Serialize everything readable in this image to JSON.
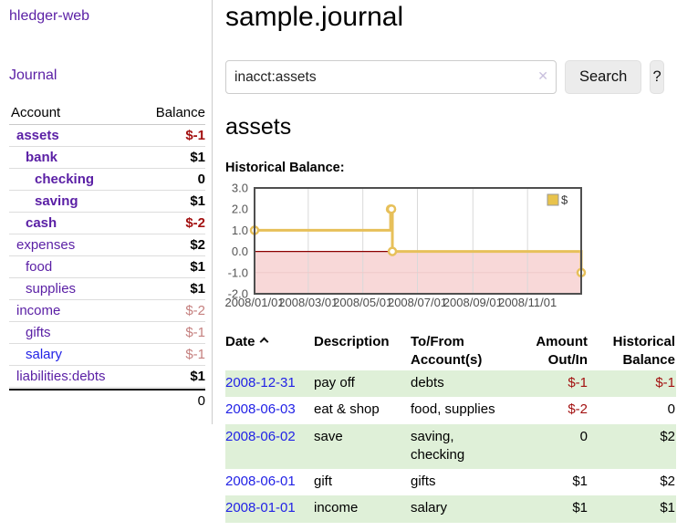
{
  "colors": {
    "purple": "#5a1fa5",
    "blue": "#2222e6",
    "negative": "#a31111",
    "negative_light": "#c5807f",
    "row_stripe_green": "#dff0d8",
    "gold": "#e7c05a"
  },
  "sidebar": {
    "brand": "hledger-web",
    "journal_link": "Journal",
    "accounts_header": {
      "account": "Account",
      "balance": "Balance"
    },
    "accounts": [
      {
        "name": "assets",
        "indent": 1,
        "bold": true,
        "color": "purple",
        "balance": "$-1"
      },
      {
        "name": "bank",
        "indent": 2,
        "bold": true,
        "color": "purple",
        "balance": "$1"
      },
      {
        "name": "checking",
        "indent": 3,
        "bold": true,
        "color": "purple",
        "balance": "0"
      },
      {
        "name": "saving",
        "indent": 3,
        "bold": true,
        "color": "purple",
        "balance": "$1"
      },
      {
        "name": "cash",
        "indent": 2,
        "bold": true,
        "color": "purple",
        "balance": "$-2"
      },
      {
        "name": "expenses",
        "indent": 1,
        "bold": false,
        "color": "purple",
        "balance": "$2"
      },
      {
        "name": "food",
        "indent": 2,
        "bold": false,
        "color": "purple",
        "balance": "$1"
      },
      {
        "name": "supplies",
        "indent": 2,
        "bold": false,
        "color": "purple",
        "balance": "$1"
      },
      {
        "name": "income",
        "indent": 1,
        "bold": false,
        "color": "purple",
        "balance": "$-2"
      },
      {
        "name": "gifts",
        "indent": 2,
        "bold": false,
        "color": "purple",
        "balance": "$-1"
      },
      {
        "name": "salary",
        "indent": 2,
        "bold": false,
        "color": "blue",
        "balance": "$-1"
      },
      {
        "name": "liabilities:debts",
        "indent": 1,
        "bold": false,
        "color": "purple",
        "balance": "$1"
      }
    ],
    "total": "0"
  },
  "main": {
    "title": "sample.journal",
    "search": {
      "query": "inacct:assets",
      "button": "Search",
      "help": "?",
      "clear_icon": "✕"
    },
    "account_heading": "assets",
    "chart_title": "Historical Balance:",
    "register": {
      "headers": {
        "date": "Date",
        "description": "Description",
        "to_from": "To/From Account(s)",
        "amount": "Amount Out/In",
        "balance": "Historical Balance"
      },
      "rows": [
        {
          "date": "2008-12-31",
          "description": "pay off",
          "to_from": "debts",
          "amount": "$-1",
          "balance": "$-1"
        },
        {
          "date": "2008-06-03",
          "description": "eat & shop",
          "to_from": "food, supplies",
          "amount": "$-2",
          "balance": "0"
        },
        {
          "date": "2008-06-02",
          "description": "save",
          "to_from": "saving,\nchecking",
          "amount": "0",
          "balance": "$2"
        },
        {
          "date": "2008-06-01",
          "description": "gift",
          "to_from": "gifts",
          "amount": "$1",
          "balance": "$2"
        },
        {
          "date": "2008-01-01",
          "description": "income",
          "to_from": "salary",
          "amount": "$1",
          "balance": "$1"
        }
      ]
    }
  },
  "chart_data": {
    "type": "line",
    "step": true,
    "title": "Historical Balance:",
    "series": [
      {
        "name": "$",
        "color": "#e7c05a",
        "points": [
          [
            "2008-01-01",
            1
          ],
          [
            "2008-06-01",
            2
          ],
          [
            "2008-06-02",
            2
          ],
          [
            "2008-06-03",
            0
          ],
          [
            "2008-12-31",
            -1
          ]
        ]
      }
    ],
    "x_range": [
      "2008-01-01",
      "2008-12-31"
    ],
    "ylim": [
      -2,
      3
    ],
    "yticks": [
      3.0,
      2.0,
      1.0,
      0.0,
      -1.0,
      -2.0
    ],
    "xticks": [
      {
        "date": "2008-01-01",
        "label": "2008/01/01"
      },
      {
        "date": "2008-03-01",
        "label": "2008/03/01"
      },
      {
        "date": "2008-05-01",
        "label": "2008/05/01"
      },
      {
        "date": "2008-07-01",
        "label": "2008/07/01"
      },
      {
        "date": "2008-09-01",
        "label": "2008/09/01"
      },
      {
        "date": "2008-11-01",
        "label": "2008/11/01"
      }
    ],
    "legend": {
      "label": "$",
      "color": "#e8c34c",
      "position": "top-right"
    },
    "negative_fill": "#f8d8d8",
    "zero_line": "#8b0000",
    "grid": "vertical"
  }
}
